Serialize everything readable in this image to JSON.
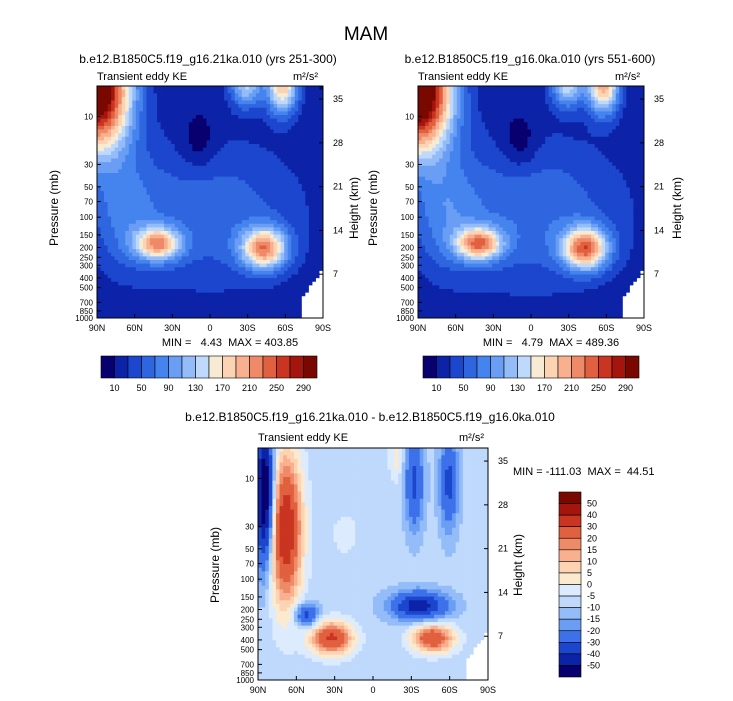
{
  "figure_title": "MAM",
  "chart_data": [
    {
      "type": "heatmap",
      "title": "b.e12.B1850C5.f19_g16.21ka.010 (yrs 251-300)",
      "subtitle_left": "Transient eddy KE",
      "units": "m²/s²",
      "ylabel": "Pressure (mb)",
      "ylabel_right": "Height (km)",
      "x_ticks": [
        "90N",
        "60N",
        "30N",
        "0",
        "30S",
        "60S",
        "90S"
      ],
      "y_ticks": [
        "10",
        "30",
        "50",
        "70",
        "100",
        "150",
        "200",
        "250",
        "300",
        "400",
        "500",
        "700",
        "850",
        "1000"
      ],
      "y_ticks_right": [
        "35",
        "28",
        "21",
        "14",
        "7"
      ],
      "min_label": "MIN =   4.43  MAX = 403.85",
      "min": 4.43,
      "max": 403.85,
      "levels": [
        10,
        30,
        50,
        70,
        90,
        110,
        130,
        150,
        170,
        190,
        210,
        230,
        250,
        270,
        290
      ],
      "colorbar_labels": [
        "10",
        "50",
        "90",
        "130",
        "170",
        "210",
        "250",
        "290"
      ],
      "field": "baseline"
    },
    {
      "type": "heatmap",
      "title": "b.e12.B1850C5.f19_g16.0ka.010 (yrs 551-600)",
      "subtitle_left": "Transient eddy KE",
      "units": "m²/s²",
      "ylabel": "Pressure (mb)",
      "ylabel_right": "Height (km)",
      "x_ticks": [
        "90N",
        "60N",
        "30N",
        "0",
        "30S",
        "60S",
        "90S"
      ],
      "y_ticks": [
        "10",
        "30",
        "50",
        "70",
        "100",
        "150",
        "200",
        "250",
        "300",
        "400",
        "500",
        "700",
        "850",
        "1000"
      ],
      "y_ticks_right": [
        "35",
        "28",
        "21",
        "14",
        "7"
      ],
      "min_label": "MIN =   4.79  MAX = 489.36",
      "min": 4.79,
      "max": 489.36,
      "levels": [
        10,
        30,
        50,
        70,
        90,
        110,
        130,
        150,
        170,
        190,
        210,
        230,
        250,
        270,
        290
      ],
      "colorbar_labels": [
        "10",
        "50",
        "90",
        "130",
        "170",
        "210",
        "250",
        "290"
      ],
      "field": "baseline"
    },
    {
      "type": "heatmap",
      "title": "b.e12.B1850C5.f19_g16.21ka.010 - b.e12.B1850C5.f19_g16.0ka.010",
      "subtitle_left": "Transient eddy KE",
      "units": "m²/s²",
      "ylabel": "Pressure (mb)",
      "ylabel_right": "Height (km)",
      "x_ticks": [
        "90N",
        "60N",
        "30N",
        "0",
        "30S",
        "60S",
        "90S"
      ],
      "y_ticks": [
        "10",
        "30",
        "50",
        "70",
        "100",
        "150",
        "200",
        "250",
        "300",
        "400",
        "500",
        "700",
        "850",
        "1000"
      ],
      "y_ticks_right": [
        "35",
        "28",
        "21",
        "14",
        "7"
      ],
      "min_label": "MIN = -111.03  MAX =  44.51",
      "min": -111.03,
      "max": 44.51,
      "levels": [
        -50,
        -40,
        -30,
        -20,
        -15,
        -10,
        -5,
        0,
        5,
        10,
        15,
        20,
        30,
        40,
        50
      ],
      "colorbar_labels": [
        "50",
        "40",
        "30",
        "20",
        "15",
        "10",
        "5",
        "0",
        "-5",
        "-10",
        "-15",
        "-20",
        "-30",
        "-40",
        "-50"
      ],
      "field": "diff"
    }
  ],
  "colors": {
    "baseline": [
      "#08006e",
      "#0c23a8",
      "#1b46cd",
      "#2f66e0",
      "#4584ef",
      "#6a9ef4",
      "#93bcf8",
      "#bfd9fc",
      "#f7ecd3",
      "#fcd3b3",
      "#f8b08e",
      "#ef8a68",
      "#e0603f",
      "#c93521",
      "#a3150d",
      "#790800"
    ],
    "diff": [
      "#08006e",
      "#0c23a8",
      "#1b46cd",
      "#3d71ea",
      "#6a9ef4",
      "#93bcf8",
      "#bfd9fc",
      "#dcebfd",
      "#fbead0",
      "#fcd3b3",
      "#f8b08e",
      "#ef8a68",
      "#e0603f",
      "#c93521",
      "#a3150d",
      "#790800"
    ]
  }
}
